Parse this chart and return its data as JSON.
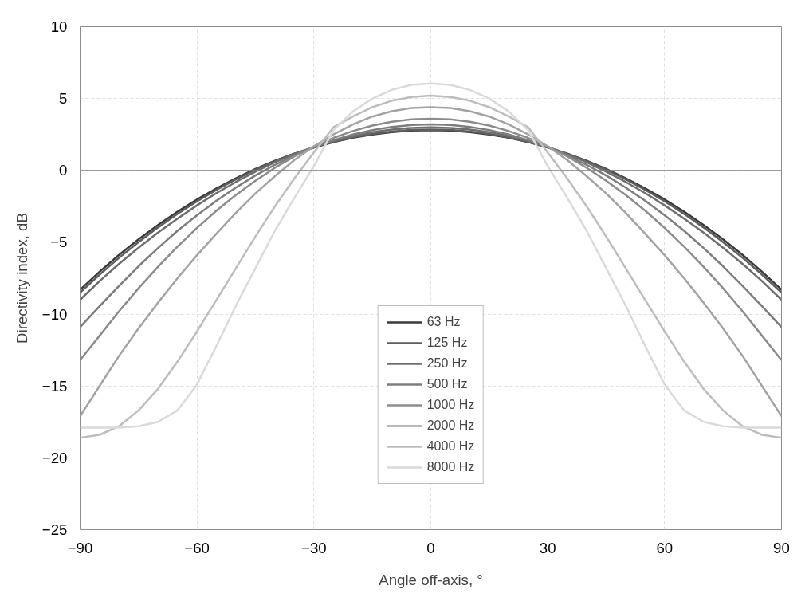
{
  "chart_data": {
    "type": "line",
    "xlabel": "Angle off-axis, °",
    "ylabel": "Directivity index, dB",
    "x": [
      -90,
      -85,
      -80,
      -75,
      -70,
      -65,
      -60,
      -55,
      -50,
      -45,
      -40,
      -35,
      -30,
      -25,
      -20,
      -15,
      -10,
      -5,
      0,
      5,
      10,
      15,
      20,
      25,
      30,
      35,
      40,
      45,
      50,
      55,
      60,
      65,
      70,
      75,
      80,
      85,
      90
    ],
    "xlim": [
      -90,
      90
    ],
    "xticks": [
      -90,
      -60,
      -30,
      0,
      30,
      60,
      90
    ],
    "ylim": [
      -25,
      10
    ],
    "yticks": [
      -25,
      -20,
      -15,
      -10,
      -5,
      0,
      5,
      10
    ],
    "grid": true,
    "legend": "bottom",
    "line_style": "solid",
    "ref_lines": [
      {
        "axis": "y",
        "value": 0,
        "color": "#808080"
      }
    ],
    "series": [
      {
        "name": "63 Hz",
        "color": "#3a3a3a",
        "values": [
          -8.3,
          -7.05,
          -5.88,
          -4.8,
          -3.8,
          -2.87,
          -2.02,
          -1.25,
          -0.55,
          0.1,
          0.67,
          1.17,
          1.6,
          1.97,
          2.27,
          2.5,
          2.67,
          2.77,
          2.8,
          2.77,
          2.67,
          2.5,
          2.27,
          1.97,
          1.6,
          1.17,
          0.67,
          0.1,
          -0.55,
          -1.25,
          -2.02,
          -2.87,
          -3.8,
          -4.8,
          -5.88,
          -7.05,
          -8.3
        ]
      },
      {
        "name": "125 Hz",
        "color": "#5e5e5e",
        "values": [
          -8.5,
          -7.25,
          -6.08,
          -4.99,
          -3.97,
          -3.02,
          -2.15,
          -1.35,
          -0.62,
          0.05,
          0.64,
          1.16,
          1.61,
          1.99,
          2.3,
          2.54,
          2.71,
          2.82,
          2.85,
          2.82,
          2.71,
          2.54,
          2.3,
          1.99,
          1.61,
          1.16,
          0.64,
          0.05,
          -0.62,
          -1.35,
          -2.15,
          -3.02,
          -3.97,
          -4.99,
          -6.08,
          -7.25,
          -8.5
        ]
      },
      {
        "name": "250 Hz",
        "color": "#6e6e6e",
        "values": [
          -9.0,
          -7.7,
          -6.5,
          -5.38,
          -4.33,
          -3.35,
          -2.43,
          -1.58,
          -0.8,
          -0.09,
          0.56,
          1.13,
          1.63,
          2.05,
          2.39,
          2.66,
          2.85,
          2.96,
          3.0,
          2.96,
          2.85,
          2.66,
          2.39,
          2.05,
          1.63,
          1.13,
          0.56,
          -0.09,
          -0.8,
          -1.58,
          -2.43,
          -3.35,
          -4.33,
          -5.38,
          -6.5,
          -7.7,
          -9.0
        ]
      },
      {
        "name": "500 Hz",
        "color": "#7d7d7d",
        "values": [
          -10.9,
          -9.45,
          -8.03,
          -6.67,
          -5.4,
          -4.2,
          -3.12,
          -2.11,
          -1.19,
          -0.35,
          0.39,
          1.05,
          1.62,
          2.1,
          2.5,
          2.81,
          3.02,
          3.16,
          3.2,
          3.16,
          3.02,
          2.81,
          2.5,
          2.1,
          1.62,
          1.05,
          0.39,
          -0.35,
          -1.19,
          -2.11,
          -3.12,
          -4.2,
          -5.4,
          -6.67,
          -8.03,
          -9.45,
          -10.9
        ]
      },
      {
        "name": "1000 Hz",
        "color": "#8c8c8c",
        "values": [
          -13.2,
          -11.5,
          -9.8,
          -8.2,
          -6.7,
          -5.3,
          -4.0,
          -2.8,
          -1.7,
          -0.72,
          0.18,
          0.98,
          1.67,
          2.26,
          2.74,
          3.12,
          3.39,
          3.55,
          3.6,
          3.55,
          3.39,
          3.12,
          2.74,
          2.26,
          1.67,
          0.98,
          0.18,
          -0.72,
          -1.7,
          -2.8,
          -4.0,
          -5.3,
          -6.7,
          -8.2,
          -9.8,
          -11.5,
          -13.2
        ]
      },
      {
        "name": "2000 Hz",
        "color": "#a3a3a3",
        "values": [
          -17.1,
          -15.0,
          -12.9,
          -11.0,
          -9.2,
          -7.5,
          -5.9,
          -4.4,
          -2.95,
          -1.6,
          -0.4,
          0.72,
          1.68,
          2.5,
          3.2,
          3.75,
          4.12,
          4.34,
          4.4,
          4.34,
          4.12,
          3.75,
          3.2,
          2.5,
          1.68,
          0.72,
          -0.4,
          -1.6,
          -2.95,
          -4.4,
          -5.9,
          -7.5,
          -9.2,
          -11.0,
          -12.9,
          -15.0,
          -17.1
        ]
      },
      {
        "name": "4000 Hz",
        "color": "#bdbdbd",
        "values": [
          -18.6,
          -18.4,
          -17.8,
          -16.7,
          -15.2,
          -13.3,
          -11.2,
          -9.0,
          -6.8,
          -4.6,
          -2.5,
          -0.55,
          1.25,
          3.0,
          3.75,
          4.4,
          4.85,
          5.1,
          5.2,
          5.1,
          4.85,
          4.4,
          3.75,
          3.0,
          1.25,
          -0.55,
          -2.5,
          -4.6,
          -6.8,
          -9.0,
          -11.2,
          -13.3,
          -15.2,
          -16.7,
          -17.8,
          -18.4,
          -18.6
        ]
      },
      {
        "name": "8000 Hz",
        "color": "#dadada",
        "values": [
          -17.9,
          -17.9,
          -17.9,
          -17.8,
          -17.5,
          -16.7,
          -14.9,
          -12.2,
          -9.4,
          -6.8,
          -4.2,
          -1.9,
          0.3,
          2.8,
          4.1,
          5.0,
          5.6,
          5.95,
          6.05,
          5.95,
          5.6,
          5.0,
          4.1,
          2.8,
          0.3,
          -1.9,
          -4.2,
          -6.8,
          -9.4,
          -12.2,
          -14.9,
          -16.7,
          -17.5,
          -17.8,
          -17.9,
          -17.9,
          -17.9
        ]
      }
    ]
  }
}
